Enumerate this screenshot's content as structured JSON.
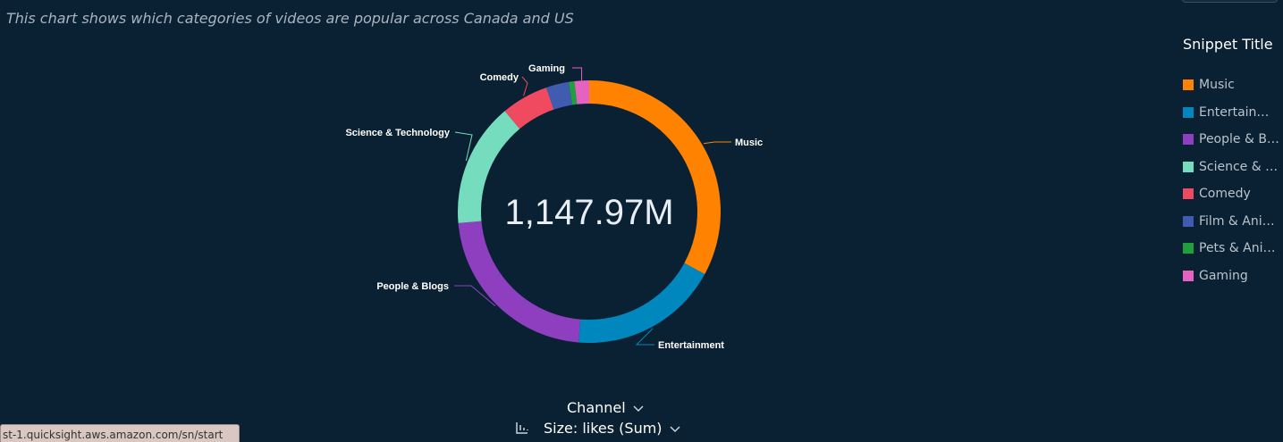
{
  "subtitle": "This chart shows which categories of videos are popular across Canada and US",
  "legend": {
    "title": "Snippet Title",
    "items": [
      {
        "label": "Music",
        "color": "#ff8200"
      },
      {
        "label": "Entertainm…",
        "color": "#0088be"
      },
      {
        "label": "People & B…",
        "color": "#8e3fbf"
      },
      {
        "label": "Science & T…",
        "color": "#75ddbd"
      },
      {
        "label": "Comedy",
        "color": "#ef4a60"
      },
      {
        "label": "Film & Ani…",
        "color": "#3f5cb1"
      },
      {
        "label": "Pets & Ani…",
        "color": "#1fa03c"
      },
      {
        "label": "Gaming",
        "color": "#e463c0"
      }
    ]
  },
  "chart_data": {
    "type": "pie",
    "donut": true,
    "total_label": "1,147.97M",
    "series": [
      {
        "name": "Music",
        "value": 0.329,
        "color": "#ff8200",
        "label": "Music"
      },
      {
        "name": "Entertainment",
        "value": 0.184,
        "color": "#0088be",
        "label": "Entertainment"
      },
      {
        "name": "People & Blogs",
        "value": 0.223,
        "color": "#8e3fbf",
        "label": "People & Blogs"
      },
      {
        "name": "Science & Technology",
        "value": 0.153,
        "color": "#75ddbd",
        "label": "Science & Technology"
      },
      {
        "name": "Comedy",
        "value": 0.058,
        "color": "#ef4a60",
        "label": "Comedy"
      },
      {
        "name": "Film & Animation",
        "value": 0.028,
        "color": "#3f5cb1",
        "label": ""
      },
      {
        "name": "Pets & Animals",
        "value": 0.007,
        "color": "#1fa03c",
        "label": ""
      },
      {
        "name": "Gaming",
        "value": 0.018,
        "color": "#e463c0",
        "label": "Gaming"
      }
    ],
    "group_by_label": "Channel",
    "size_label": "Size: likes (Sum)"
  },
  "status_url": "st-1.quicksight.aws.amazon.com/sn/start"
}
